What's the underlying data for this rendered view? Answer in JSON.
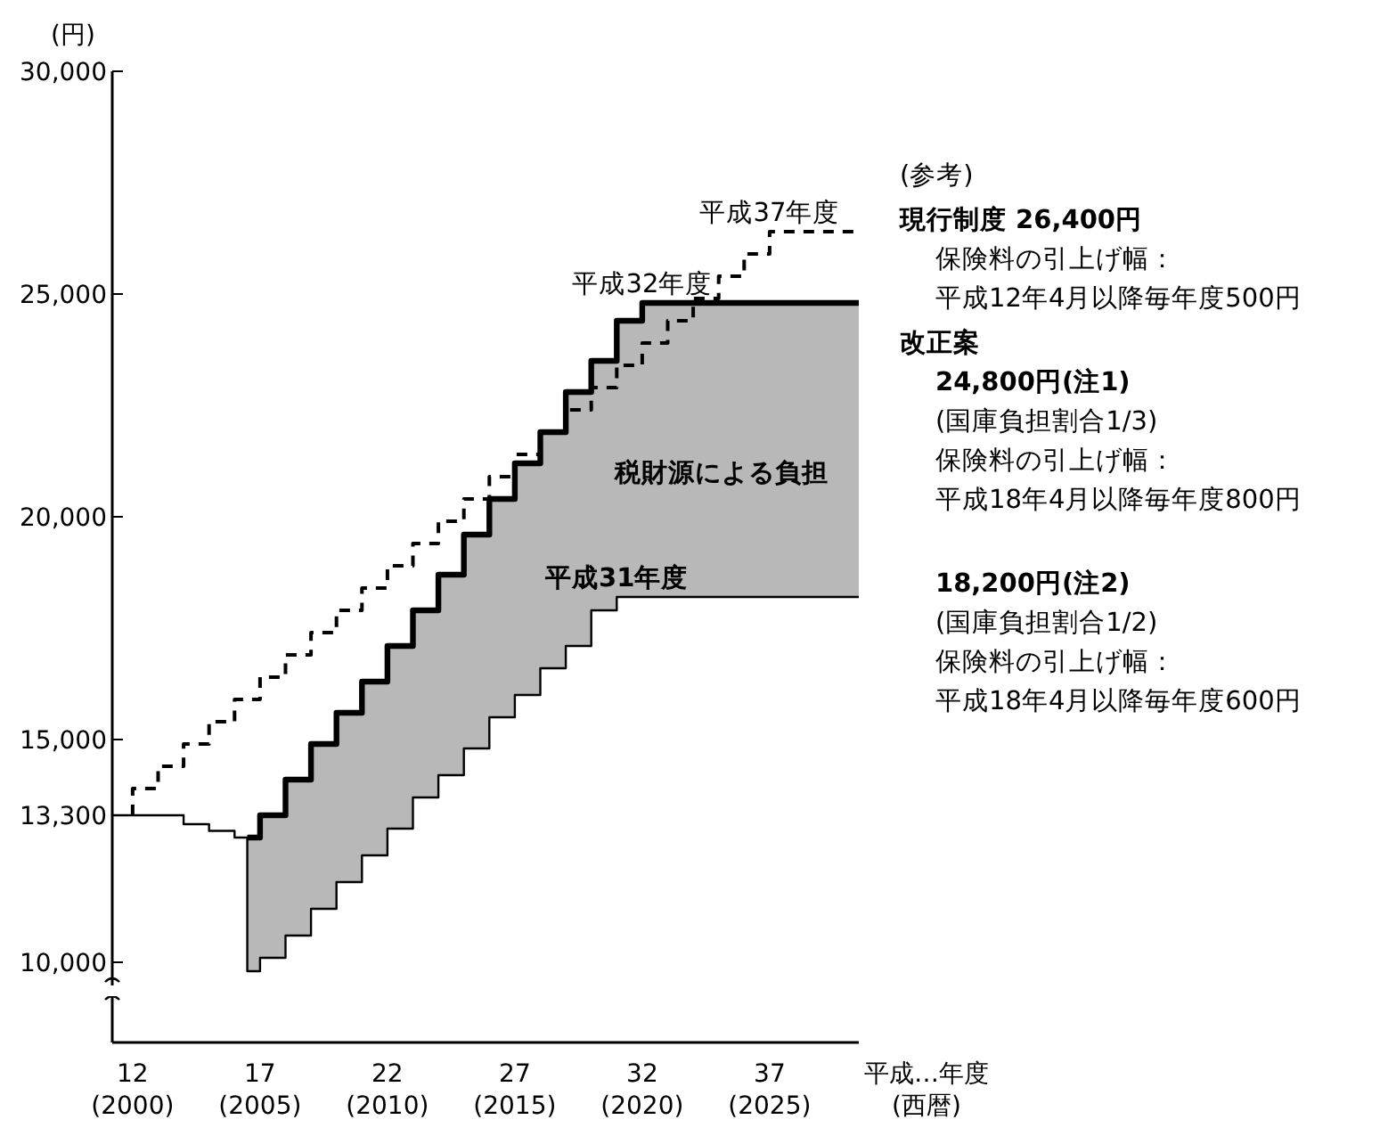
{
  "chart_data": {
    "type": "step",
    "ylabel": "(円)",
    "xlabel": "平成…年度\n(西暦)",
    "xlim": [
      11.2,
      40.5
    ],
    "ylim": [
      8200,
      30000
    ],
    "xticks": [
      12,
      17,
      22,
      27,
      32,
      37
    ],
    "x2lim": [
      1999.2,
      2028.5
    ],
    "x2ticks": [
      {
        "value": 2000,
        "label": "(2000)"
      },
      {
        "value": 2005,
        "label": "(2005)"
      },
      {
        "value": 2010,
        "label": "(2010)"
      },
      {
        "value": 2015,
        "label": "(2015)"
      },
      {
        "value": 2020,
        "label": "(2020)"
      },
      {
        "value": 2025,
        "label": "(2025)"
      }
    ],
    "yticks": [
      {
        "value": 10000,
        "label": "10,000"
      },
      {
        "value": 13300,
        "label": "13,300"
      },
      {
        "value": 15000,
        "label": "15,000"
      },
      {
        "value": 20000,
        "label": "20,000"
      },
      {
        "value": 25000,
        "label": "25,000"
      },
      {
        "value": 30000,
        "label": "30,000"
      }
    ],
    "series": [
      {
        "color": "#000000",
        "line_style": "dashed",
        "x": [
          12,
          12,
          13,
          14,
          15,
          16,
          17,
          18,
          19,
          20,
          21,
          22,
          23,
          24,
          25,
          26,
          27,
          28,
          29,
          30,
          31,
          32,
          33,
          34,
          35,
          36,
          37,
          40.5
        ],
        "values": [
          13300,
          13900,
          14400,
          14900,
          15400,
          15900,
          16400,
          16900,
          17400,
          17900,
          18400,
          18900,
          19400,
          19900,
          20400,
          20900,
          21400,
          21900,
          22400,
          22900,
          23400,
          23900,
          24400,
          24900,
          25400,
          25900,
          26400,
          26400
        ]
      },
      {
        "color": "#000000",
        "line_style": "solid",
        "x": [
          16.5,
          17,
          18,
          19,
          20,
          21,
          22,
          23,
          24,
          25,
          26,
          27,
          28,
          29,
          30,
          31,
          32,
          40.5
        ],
        "values": [
          12800,
          13300,
          14100,
          14900,
          15600,
          16300,
          17100,
          17900,
          18700,
          19600,
          20400,
          21200,
          21900,
          22800,
          23500,
          24400,
          24800,
          24800
        ],
        "lower": [
          9800,
          10100,
          10600,
          11200,
          11800,
          12400,
          13000,
          13700,
          14200,
          14800,
          15500,
          16000,
          16600,
          17100,
          17900,
          18200,
          18200,
          18200
        ],
        "upper": [
          12800,
          13300,
          14100,
          14900,
          15600,
          16300,
          17100,
          17900,
          18700,
          19600,
          20400,
          21200,
          21900,
          22800,
          23500,
          24400,
          24800,
          24800
        ]
      },
      {
        "color": "#000000",
        "line_style": "solid",
        "x": [
          11.2,
          14,
          15,
          16,
          16.5,
          17,
          18,
          19,
          20,
          21,
          22,
          23,
          24,
          25,
          26,
          27,
          28,
          29,
          30,
          31,
          40.5
        ],
        "values": [
          13300,
          13100,
          12950,
          12800,
          9800,
          10100,
          10600,
          11200,
          11800,
          12400,
          13000,
          13700,
          14200,
          14800,
          15500,
          16000,
          16600,
          17100,
          17900,
          18200,
          18200
        ]
      }
    ],
    "annotations": [
      {
        "text": "平成37年度",
        "x": 37,
        "y": 26400
      },
      {
        "text": "平成32年度",
        "x": 32,
        "y": 24800
      },
      {
        "text": "平成31年度",
        "x": 31,
        "y": 18200
      },
      "税財源による負担",
      "(参考)",
      "現行制度 26,400円",
      "保険料の引上げ幅：",
      "平成12年4月以降毎年度500円",
      "改正案",
      "24,800円(注1)",
      "(国庫負担割合1/3)",
      "保険料の引上げ幅：",
      "平成18年4月以降毎年度800円",
      "18,200円(注2)",
      "(国庫負担割合1/2)",
      "保険料の引上げ幅：",
      "平成18年4月以降毎年度600円"
    ]
  }
}
